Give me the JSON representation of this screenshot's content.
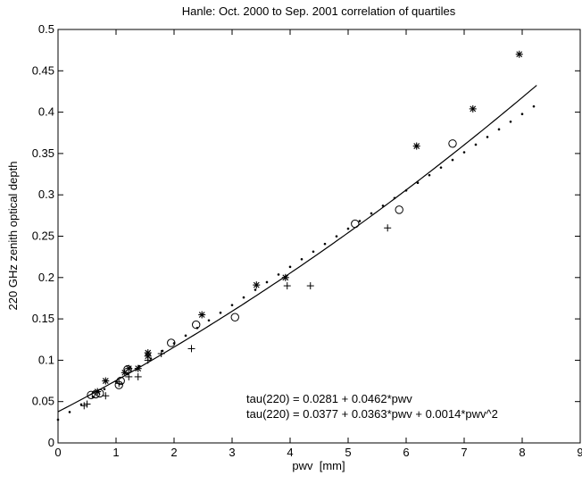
{
  "chart_data": {
    "type": "scatter",
    "title": "Hanle: Oct. 2000 to Sep. 2001 correlation of quartiles",
    "xlabel": "pwv  [mm]",
    "ylabel": "220 GHz zenith optical depth",
    "xlim": [
      0,
      9
    ],
    "ylim": [
      0,
      0.5
    ],
    "x_ticks": [
      0,
      1,
      2,
      3,
      4,
      5,
      6,
      7,
      8,
      9
    ],
    "x_tick_labels": [
      "0",
      "1",
      "2",
      "3",
      "4",
      "5",
      "6",
      "7",
      "8",
      "9"
    ],
    "y_ticks": [
      0,
      0.05,
      0.1,
      0.15,
      0.2,
      0.25,
      0.3,
      0.35,
      0.4,
      0.45,
      0.5
    ],
    "y_tick_labels": [
      "0",
      "0.05",
      "0.1",
      "0.15",
      "0.2",
      "0.25",
      "0.3",
      "0.35",
      "0.4",
      "0.45",
      "0.5"
    ],
    "grid": false,
    "series": [
      {
        "marker": "plus",
        "x": [
          0.45,
          0.5,
          0.82,
          1.05,
          1.22,
          1.38,
          1.55,
          1.78,
          2.3,
          3.95,
          4.35,
          5.68
        ],
        "y": [
          0.045,
          0.047,
          0.057,
          0.072,
          0.08,
          0.08,
          0.1,
          0.108,
          0.114,
          0.19,
          0.19,
          0.26
        ]
      },
      {
        "marker": "circle",
        "x": [
          0.57,
          0.65,
          0.72,
          1.05,
          1.08,
          1.2,
          1.95,
          2.38,
          3.05,
          5.12,
          5.88,
          6.8
        ],
        "y": [
          0.058,
          0.059,
          0.06,
          0.07,
          0.075,
          0.089,
          0.121,
          0.143,
          0.152,
          0.265,
          0.282,
          0.362
        ]
      },
      {
        "marker": "asterisk",
        "x": [
          0.68,
          0.82,
          1.15,
          1.22,
          1.38,
          1.55,
          1.55,
          2.48,
          3.42,
          3.92,
          6.18,
          7.15,
          7.95
        ],
        "y": [
          0.062,
          0.075,
          0.085,
          0.09,
          0.09,
          0.105,
          0.109,
          0.155,
          0.191,
          0.2,
          0.359,
          0.404,
          0.47
        ]
      },
      {
        "marker": "dot",
        "x_start": 0,
        "x_step": 0.2,
        "count": 42,
        "equation": "tau(220) = 0.0281 + 0.0462*pwv"
      },
      {
        "marker": "line",
        "x_range": [
          0,
          8.25
        ],
        "equation": "tau(220) = 0.0377 + 0.0363*pwv + 0.0014*pwv^2"
      }
    ],
    "annotations": [
      "tau(220) = 0.0281 + 0.0462*pwv",
      "tau(220) = 0.0377 + 0.0363*pwv + 0.0014*pwv^2"
    ]
  }
}
